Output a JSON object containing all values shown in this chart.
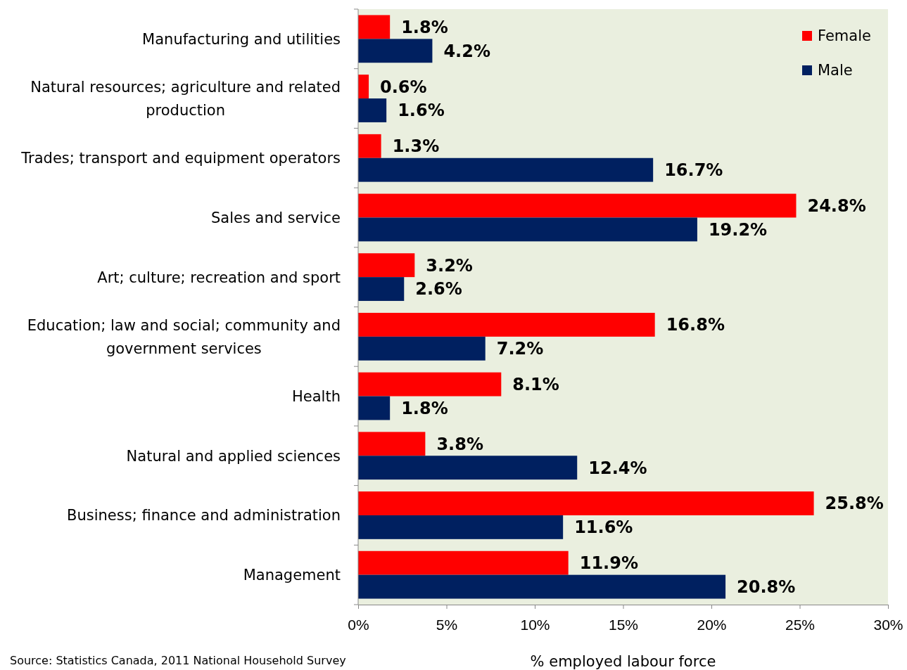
{
  "chart_data": {
    "type": "bar",
    "orientation": "horizontal",
    "xlabel": "% employed labour force",
    "categories": [
      "Manufacturing and utilities",
      "Natural resources; agriculture and related production",
      "Trades; transport and equipment operators",
      "Sales and service",
      "Art; culture; recreation and sport",
      "Education; law and social; community and government services",
      "Health",
      "Natural and applied sciences",
      "Business; finance and administration",
      "Management"
    ],
    "series": [
      {
        "name": "Female",
        "color": "#ff0000",
        "values": [
          1.8,
          0.6,
          1.3,
          24.8,
          3.2,
          16.8,
          8.1,
          3.8,
          25.8,
          11.9
        ],
        "value_labels": [
          "1.8%",
          "0.6%",
          "1.3%",
          "24.8%",
          "3.2%",
          "16.8%",
          "8.1%",
          "3.8%",
          "25.8%",
          "11.9%"
        ]
      },
      {
        "name": "Male",
        "color": "#002060",
        "values": [
          4.2,
          1.6,
          16.7,
          19.2,
          2.6,
          7.2,
          1.8,
          12.4,
          11.6,
          20.8
        ],
        "value_labels": [
          "4.2%",
          "1.6%",
          "16.7%",
          "19.2%",
          "2.6%",
          "7.2%",
          "1.8%",
          "12.4%",
          "11.6%",
          "20.8%"
        ]
      }
    ],
    "xlim": [
      0,
      30
    ],
    "xticks": [
      {
        "value": 0,
        "label": "0%"
      },
      {
        "value": 5,
        "label": "5%"
      },
      {
        "value": 10,
        "label": "10%"
      },
      {
        "value": 15,
        "label": "15%"
      },
      {
        "value": 20,
        "label": "20%"
      },
      {
        "value": 25,
        "label": "25%"
      },
      {
        "value": 30,
        "label": "30%"
      }
    ],
    "grid": false,
    "legend": "top right",
    "annotations": [
      "Source: Statistics Canada, 2011 National Household Survey"
    ]
  }
}
